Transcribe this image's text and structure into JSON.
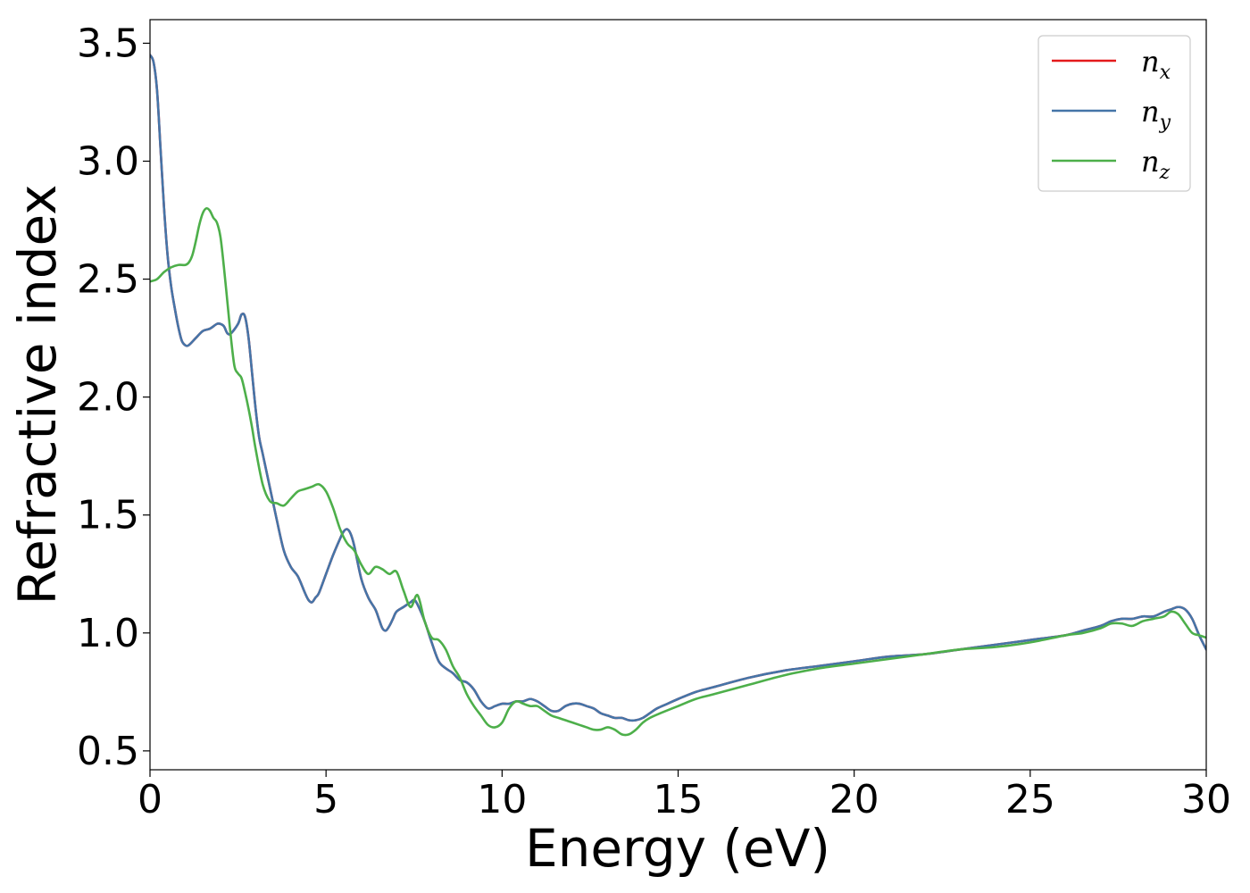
{
  "chart_data": {
    "type": "line",
    "title": "",
    "xlabel": "Energy (eV)",
    "ylabel": "Refractive index",
    "xlim": [
      0,
      30
    ],
    "ylim": [
      0.42,
      3.6
    ],
    "xticks": [
      0,
      5,
      10,
      15,
      20,
      25,
      30
    ],
    "yticks": [
      0.5,
      1.0,
      1.5,
      2.0,
      2.5,
      3.0,
      3.5
    ],
    "xtick_labels": [
      "0",
      "5",
      "10",
      "15",
      "20",
      "25",
      "30"
    ],
    "ytick_labels": [
      "0.5",
      "1.0",
      "1.5",
      "2.0",
      "2.5",
      "3.0",
      "3.5"
    ],
    "grid": false,
    "legend_position": "top-right",
    "series": [
      {
        "name": "n_x",
        "label_main": "n",
        "label_sub": "x",
        "color": "#e41a1c",
        "x": [
          0,
          0.1,
          0.2,
          0.3,
          0.4,
          0.5,
          0.6,
          0.7,
          0.8,
          0.9,
          1.0,
          1.1,
          1.3,
          1.5,
          1.7,
          1.9,
          2.0,
          2.1,
          2.2,
          2.3,
          2.5,
          2.6,
          2.7,
          2.8,
          2.9,
          3.0,
          3.1,
          3.2,
          3.4,
          3.6,
          3.8,
          4.0,
          4.2,
          4.4,
          4.5,
          4.6,
          4.7,
          4.8,
          5.0,
          5.2,
          5.4,
          5.5,
          5.6,
          5.7,
          5.8,
          6.0,
          6.2,
          6.4,
          6.5,
          6.6,
          6.7,
          6.8,
          6.9,
          7.0,
          7.2,
          7.4,
          7.5,
          7.6,
          7.8,
          8.0,
          8.2,
          8.4,
          8.6,
          8.8,
          9.0,
          9.2,
          9.4,
          9.6,
          9.8,
          10.0,
          10.2,
          10.4,
          10.6,
          10.8,
          11.0,
          11.2,
          11.4,
          11.6,
          11.8,
          12.0,
          12.2,
          12.4,
          12.6,
          12.8,
          13.0,
          13.2,
          13.4,
          13.6,
          13.8,
          14.0,
          14.2,
          14.4,
          14.7,
          15.0,
          15.5,
          16.0,
          17.0,
          18.0,
          19.0,
          20.0,
          21.0,
          22.0,
          23.0,
          24.0,
          25.0,
          26.0,
          26.5,
          27.0,
          27.3,
          27.6,
          27.9,
          28.2,
          28.5,
          28.8,
          29.0,
          29.2,
          29.4,
          29.6,
          29.8,
          30.0
        ],
        "y": [
          3.45,
          3.42,
          3.3,
          3.05,
          2.8,
          2.6,
          2.47,
          2.38,
          2.3,
          2.24,
          2.22,
          2.22,
          2.25,
          2.28,
          2.29,
          2.31,
          2.31,
          2.3,
          2.27,
          2.27,
          2.31,
          2.35,
          2.34,
          2.25,
          2.1,
          1.95,
          1.83,
          1.76,
          1.62,
          1.48,
          1.35,
          1.28,
          1.24,
          1.17,
          1.14,
          1.13,
          1.15,
          1.17,
          1.25,
          1.33,
          1.4,
          1.43,
          1.44,
          1.42,
          1.37,
          1.23,
          1.15,
          1.1,
          1.06,
          1.02,
          1.01,
          1.03,
          1.06,
          1.09,
          1.11,
          1.13,
          1.14,
          1.12,
          1.05,
          0.96,
          0.88,
          0.85,
          0.83,
          0.8,
          0.79,
          0.76,
          0.71,
          0.68,
          0.69,
          0.7,
          0.7,
          0.71,
          0.71,
          0.72,
          0.71,
          0.69,
          0.67,
          0.67,
          0.69,
          0.7,
          0.7,
          0.69,
          0.68,
          0.66,
          0.65,
          0.64,
          0.64,
          0.63,
          0.63,
          0.64,
          0.66,
          0.68,
          0.7,
          0.72,
          0.75,
          0.77,
          0.81,
          0.84,
          0.86,
          0.88,
          0.9,
          0.91,
          0.93,
          0.95,
          0.97,
          0.99,
          1.01,
          1.03,
          1.05,
          1.06,
          1.06,
          1.07,
          1.07,
          1.09,
          1.1,
          1.11,
          1.1,
          1.06,
          0.99,
          0.93
        ]
      },
      {
        "name": "n_y",
        "label_main": "n",
        "label_sub": "y",
        "color": "#4575a8",
        "x": [
          0,
          0.1,
          0.2,
          0.3,
          0.4,
          0.5,
          0.6,
          0.7,
          0.8,
          0.9,
          1.0,
          1.1,
          1.3,
          1.5,
          1.7,
          1.9,
          2.0,
          2.1,
          2.2,
          2.3,
          2.5,
          2.6,
          2.7,
          2.8,
          2.9,
          3.0,
          3.1,
          3.2,
          3.4,
          3.6,
          3.8,
          4.0,
          4.2,
          4.4,
          4.5,
          4.6,
          4.7,
          4.8,
          5.0,
          5.2,
          5.4,
          5.5,
          5.6,
          5.7,
          5.8,
          6.0,
          6.2,
          6.4,
          6.5,
          6.6,
          6.7,
          6.8,
          6.9,
          7.0,
          7.2,
          7.4,
          7.5,
          7.6,
          7.8,
          8.0,
          8.2,
          8.4,
          8.6,
          8.8,
          9.0,
          9.2,
          9.4,
          9.6,
          9.8,
          10.0,
          10.2,
          10.4,
          10.6,
          10.8,
          11.0,
          11.2,
          11.4,
          11.6,
          11.8,
          12.0,
          12.2,
          12.4,
          12.6,
          12.8,
          13.0,
          13.2,
          13.4,
          13.6,
          13.8,
          14.0,
          14.2,
          14.4,
          14.7,
          15.0,
          15.5,
          16.0,
          17.0,
          18.0,
          19.0,
          20.0,
          21.0,
          22.0,
          23.0,
          24.0,
          25.0,
          26.0,
          26.5,
          27.0,
          27.3,
          27.6,
          27.9,
          28.2,
          28.5,
          28.8,
          29.0,
          29.2,
          29.4,
          29.6,
          29.8,
          30.0
        ],
        "y": [
          3.45,
          3.42,
          3.3,
          3.05,
          2.8,
          2.6,
          2.47,
          2.38,
          2.3,
          2.24,
          2.22,
          2.22,
          2.25,
          2.28,
          2.29,
          2.31,
          2.31,
          2.3,
          2.27,
          2.27,
          2.31,
          2.35,
          2.34,
          2.25,
          2.1,
          1.95,
          1.83,
          1.76,
          1.62,
          1.48,
          1.35,
          1.28,
          1.24,
          1.17,
          1.14,
          1.13,
          1.15,
          1.17,
          1.25,
          1.33,
          1.4,
          1.43,
          1.44,
          1.42,
          1.37,
          1.23,
          1.15,
          1.1,
          1.06,
          1.02,
          1.01,
          1.03,
          1.06,
          1.09,
          1.11,
          1.13,
          1.14,
          1.12,
          1.05,
          0.96,
          0.88,
          0.85,
          0.83,
          0.8,
          0.79,
          0.76,
          0.71,
          0.68,
          0.69,
          0.7,
          0.7,
          0.71,
          0.71,
          0.72,
          0.71,
          0.69,
          0.67,
          0.67,
          0.69,
          0.7,
          0.7,
          0.69,
          0.68,
          0.66,
          0.65,
          0.64,
          0.64,
          0.63,
          0.63,
          0.64,
          0.66,
          0.68,
          0.7,
          0.72,
          0.75,
          0.77,
          0.81,
          0.84,
          0.86,
          0.88,
          0.9,
          0.91,
          0.93,
          0.95,
          0.97,
          0.99,
          1.01,
          1.03,
          1.05,
          1.06,
          1.06,
          1.07,
          1.07,
          1.09,
          1.1,
          1.11,
          1.1,
          1.06,
          0.99,
          0.93
        ]
      },
      {
        "name": "n_z",
        "label_main": "n",
        "label_sub": "z",
        "color": "#4daf4a",
        "x": [
          0,
          0.2,
          0.4,
          0.6,
          0.8,
          1.0,
          1.1,
          1.2,
          1.3,
          1.4,
          1.5,
          1.6,
          1.7,
          1.8,
          1.9,
          2.0,
          2.1,
          2.2,
          2.3,
          2.4,
          2.5,
          2.6,
          2.7,
          2.8,
          2.9,
          3.0,
          3.2,
          3.4,
          3.6,
          3.8,
          4.0,
          4.2,
          4.4,
          4.6,
          4.8,
          5.0,
          5.2,
          5.4,
          5.6,
          5.8,
          6.0,
          6.2,
          6.4,
          6.6,
          6.8,
          7.0,
          7.2,
          7.4,
          7.6,
          7.8,
          8.0,
          8.2,
          8.4,
          8.6,
          8.8,
          9.0,
          9.2,
          9.4,
          9.6,
          9.8,
          10.0,
          10.2,
          10.4,
          10.6,
          10.8,
          11.0,
          11.2,
          11.4,
          11.6,
          11.8,
          12.0,
          12.2,
          12.4,
          12.6,
          12.8,
          13.0,
          13.2,
          13.4,
          13.6,
          13.8,
          14.0,
          14.2,
          14.5,
          15.0,
          15.5,
          16.0,
          17.0,
          18.0,
          19.0,
          20.0,
          21.0,
          22.0,
          23.0,
          24.0,
          25.0,
          26.0,
          26.5,
          27.0,
          27.3,
          27.6,
          27.9,
          28.2,
          28.5,
          28.8,
          29.0,
          29.2,
          29.4,
          29.6,
          29.8,
          30.0
        ],
        "y": [
          2.49,
          2.5,
          2.53,
          2.55,
          2.56,
          2.56,
          2.57,
          2.6,
          2.66,
          2.73,
          2.78,
          2.8,
          2.79,
          2.76,
          2.74,
          2.68,
          2.55,
          2.4,
          2.25,
          2.13,
          2.1,
          2.08,
          2.02,
          1.95,
          1.87,
          1.78,
          1.63,
          1.56,
          1.55,
          1.54,
          1.57,
          1.6,
          1.61,
          1.62,
          1.63,
          1.6,
          1.53,
          1.44,
          1.38,
          1.35,
          1.29,
          1.25,
          1.28,
          1.27,
          1.25,
          1.26,
          1.18,
          1.11,
          1.16,
          1.05,
          0.98,
          0.97,
          0.93,
          0.86,
          0.81,
          0.74,
          0.69,
          0.65,
          0.61,
          0.6,
          0.62,
          0.68,
          0.71,
          0.7,
          0.69,
          0.69,
          0.67,
          0.65,
          0.64,
          0.63,
          0.62,
          0.61,
          0.6,
          0.59,
          0.59,
          0.6,
          0.59,
          0.57,
          0.57,
          0.59,
          0.62,
          0.64,
          0.66,
          0.69,
          0.72,
          0.74,
          0.78,
          0.82,
          0.85,
          0.87,
          0.89,
          0.91,
          0.93,
          0.94,
          0.96,
          0.99,
          1.0,
          1.02,
          1.04,
          1.04,
          1.03,
          1.05,
          1.06,
          1.07,
          1.09,
          1.08,
          1.04,
          1.0,
          0.99,
          0.98
        ]
      }
    ]
  }
}
